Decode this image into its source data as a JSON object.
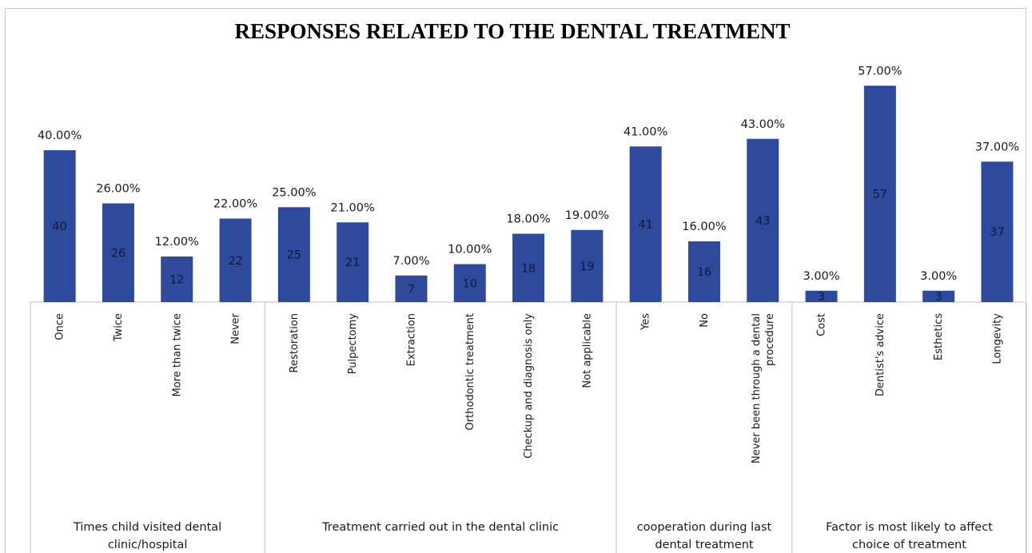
{
  "chart_data": {
    "type": "bar",
    "title": "RESPONSES RELATED TO THE DENTAL TREATMENT",
    "bar_color": "#2e4a9c",
    "ylim": [
      0,
      60
    ],
    "groups": [
      {
        "label_lines": [
          "Times child visited dental",
          "clinic/hospital"
        ],
        "items": [
          {
            "category": [
              "Once"
            ],
            "value": 40,
            "label": "40.00%"
          },
          {
            "category": [
              "Twice"
            ],
            "value": 26,
            "label": "26.00%"
          },
          {
            "category": [
              "More than twice"
            ],
            "value": 12,
            "label": "12.00%"
          },
          {
            "category": [
              "Never"
            ],
            "value": 22,
            "label": "22.00%"
          }
        ]
      },
      {
        "label_lines": [
          "Treatment carried out in the dental clinic"
        ],
        "items": [
          {
            "category": [
              "Restoration"
            ],
            "value": 25,
            "label": "25.00%"
          },
          {
            "category": [
              "Pulpectomy"
            ],
            "value": 21,
            "label": "21.00%"
          },
          {
            "category": [
              "Extraction"
            ],
            "value": 7,
            "label": "7.00%"
          },
          {
            "category": [
              "Orthodontic treatment"
            ],
            "value": 10,
            "label": "10.00%"
          },
          {
            "category": [
              "Checkup and diagnosis only"
            ],
            "value": 18,
            "label": "18.00%"
          },
          {
            "category": [
              "Not applicable"
            ],
            "value": 19,
            "label": "19.00%"
          }
        ]
      },
      {
        "label_lines": [
          "cooperation during last",
          "dental treatment"
        ],
        "items": [
          {
            "category": [
              "Yes"
            ],
            "value": 41,
            "label": "41.00%"
          },
          {
            "category": [
              "No"
            ],
            "value": 16,
            "label": "16.00%"
          },
          {
            "category": [
              "Never been through a dental",
              "procedure"
            ],
            "value": 43,
            "label": "43.00%"
          }
        ]
      },
      {
        "label_lines": [
          "Factor is most likely to affect",
          "choice of treatment"
        ],
        "items": [
          {
            "category": [
              "Cost"
            ],
            "value": 3,
            "label": "3.00%"
          },
          {
            "category": [
              "Dentist's advice"
            ],
            "value": 57,
            "label": "57.00%"
          },
          {
            "category": [
              "Esthetics"
            ],
            "value": 3,
            "label": "3.00%"
          },
          {
            "category": [
              "Longevity"
            ],
            "value": 37,
            "label": "37.00%"
          }
        ]
      }
    ]
  }
}
